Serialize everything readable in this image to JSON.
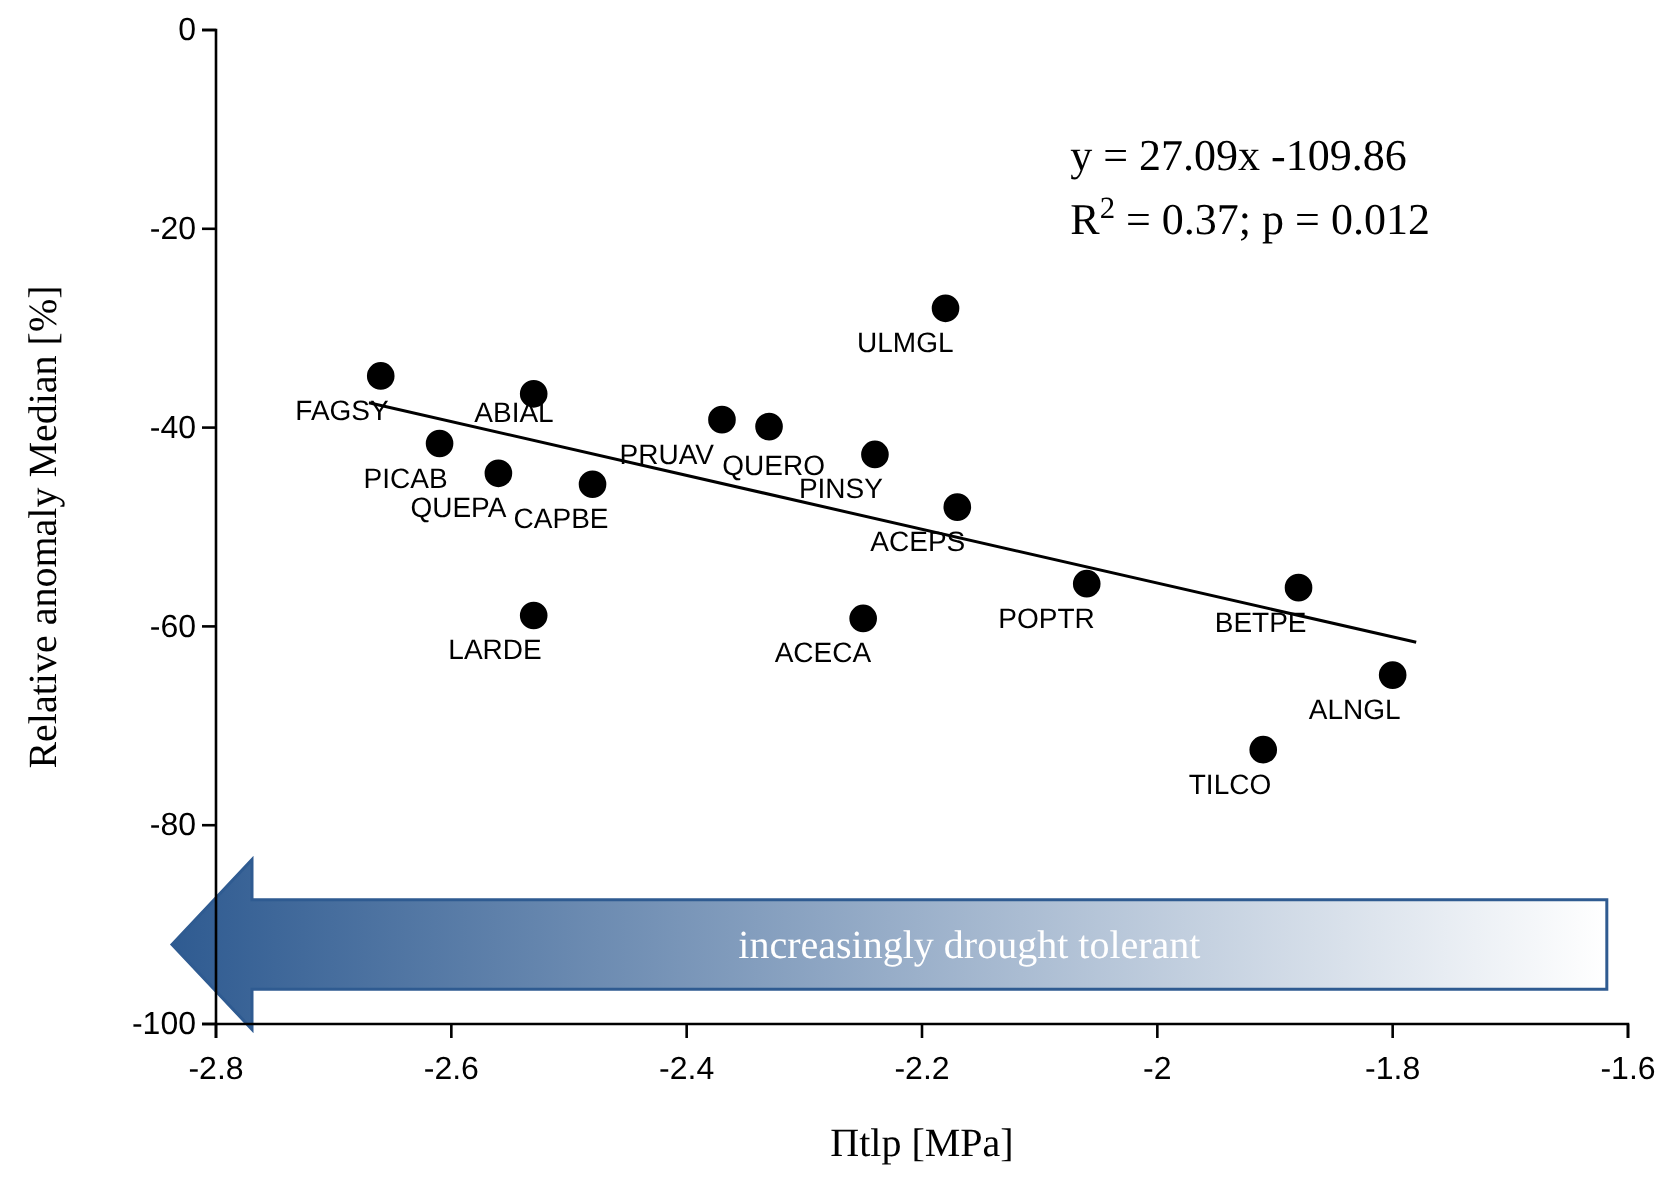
{
  "chart_data": {
    "type": "scatter",
    "xlabel": "Πtlp [MPa]",
    "ylabel": "Relative anomaly Median [%]",
    "xlim": [
      -2.8,
      -1.6
    ],
    "xticks": [
      -2.8,
      -2.6,
      -2.4,
      -2.2,
      -2.0,
      -1.8,
      -1.6
    ],
    "ylim": [
      -100,
      0
    ],
    "yticks": [
      -100,
      -80,
      -60,
      -40,
      -20,
      0
    ],
    "grid": false,
    "marker": "circle",
    "series": [
      {
        "color": "#000000",
        "x": [
          -2.66,
          -2.53,
          -2.61,
          -2.56,
          -2.48,
          -2.53,
          -2.37,
          -2.33,
          -2.24,
          -2.18,
          -2.17,
          -2.25,
          -2.06,
          -1.88,
          -1.8,
          -1.91
        ],
        "values": [
          -34.8,
          -36.6,
          -41.6,
          -44.6,
          -45.7,
          -58.9,
          -39.2,
          -39.9,
          -42.7,
          -28.0,
          -48.0,
          -59.2,
          -55.7,
          -56.1,
          -64.9,
          -72.4
        ]
      },
      {
        "type": "line",
        "color": "#000000",
        "marker": "none",
        "line_style": "solid",
        "x": [
          -2.67,
          -1.78
        ],
        "values": [
          -37.5,
          -61.6
        ]
      }
    ],
    "annotations": [
      {
        "text": "FAGSY",
        "x": -2.66,
        "y": -34.8
      },
      {
        "text": "ABIAL",
        "x": -2.53,
        "y": -36.6
      },
      {
        "text": "PICAB",
        "x": -2.61,
        "y": -41.6
      },
      {
        "text": "QUEPA",
        "x": -2.56,
        "y": -44.6
      },
      {
        "text": "CAPBE",
        "x": -2.48,
        "y": -45.7
      },
      {
        "text": "LARDE",
        "x": -2.53,
        "y": -58.9
      },
      {
        "text": "PRUAV",
        "x": -2.37,
        "y": -39.2
      },
      {
        "text": "QUERO",
        "x": -2.33,
        "y": -39.9
      },
      {
        "text": "PINSY",
        "x": -2.24,
        "y": -42.7
      },
      {
        "text": "ULMGL",
        "x": -2.18,
        "y": -28.0
      },
      {
        "text": "ACEPS",
        "x": -2.17,
        "y": -48.0
      },
      {
        "text": "ACECA",
        "x": -2.25,
        "y": -59.2
      },
      {
        "text": "POPTR",
        "x": -2.06,
        "y": -55.7
      },
      {
        "text": "BETPE",
        "x": -1.88,
        "y": -56.1
      },
      {
        "text": "ALNGL",
        "x": -1.8,
        "y": -64.9
      },
      {
        "text": "TILCO",
        "x": -1.91,
        "y": -72.4
      },
      "y = 27.09x -109.86",
      "R$^{2}$ = 0.37; p = 0.012",
      "increasingly drought tolerant"
    ]
  }
}
